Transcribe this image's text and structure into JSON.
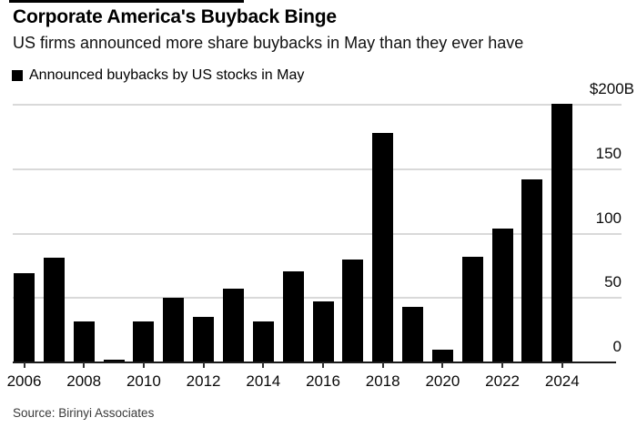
{
  "header": {
    "title": "Corporate America's Buyback Binge",
    "subtitle": "US firms announced more share buybacks in May than they ever have",
    "legend_label": "Announced buybacks by US stocks in May"
  },
  "source_label": "Source: Birinyi Associates",
  "colors": {
    "bar": "#000000",
    "gridline": "#d9d9d9",
    "axis_line": "#1a1a1a",
    "text": "#000000",
    "source_text": "#3a3a3a"
  },
  "chart_data": {
    "type": "bar",
    "title": "Announced buybacks by US stocks in May",
    "unit": "billions of US dollars",
    "categories": [
      2006,
      2007,
      2008,
      2009,
      2010,
      2011,
      2012,
      2013,
      2014,
      2015,
      2016,
      2017,
      2018,
      2019,
      2020,
      2021,
      2022,
      2023,
      2024
    ],
    "values": [
      69,
      81,
      32,
      2,
      32,
      50,
      35,
      57,
      32,
      71,
      47,
      80,
      178,
      43,
      10,
      82,
      104,
      142,
      201
    ],
    "ylim": [
      0,
      200
    ],
    "y_ticks": [
      {
        "label": "$200B",
        "value": 200
      },
      {
        "label": "150",
        "value": 150
      },
      {
        "label": "100",
        "value": 100
      },
      {
        "label": "50",
        "value": 50
      },
      {
        "label": "0",
        "value": 0
      }
    ],
    "x_tick_labels": [
      "2006",
      "2008",
      "2010",
      "2012",
      "2014",
      "2016",
      "2018",
      "2020",
      "2022",
      "2024"
    ],
    "grid": true,
    "legend_position": "top-left",
    "axis_side": "right"
  }
}
